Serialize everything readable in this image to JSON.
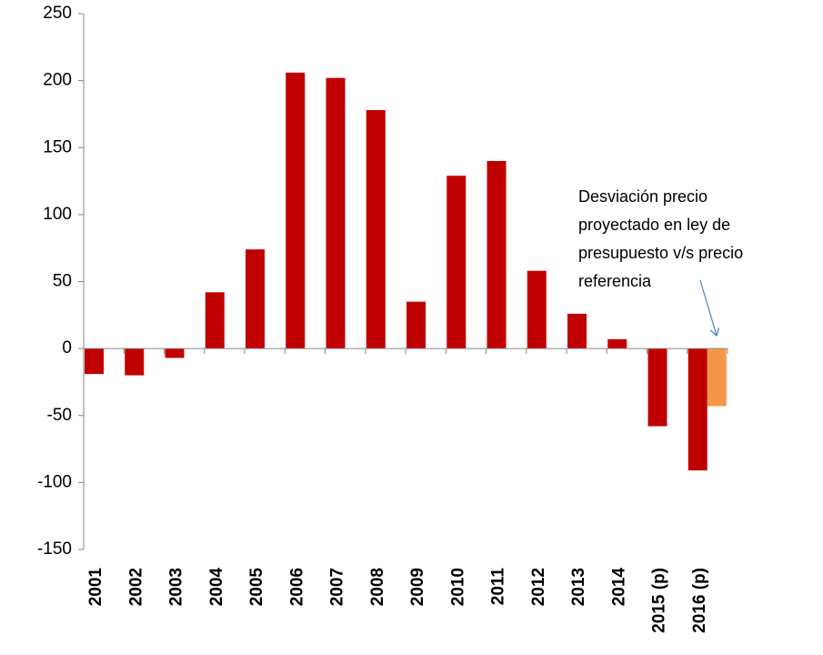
{
  "chart_data": {
    "type": "bar",
    "categories": [
      "2001",
      "2002",
      "2003",
      "2004",
      "2005",
      "2006",
      "2007",
      "2008",
      "2009",
      "2010",
      "2011",
      "2012",
      "2013",
      "2014",
      "2015 (p)",
      "2016 (p)"
    ],
    "series": [
      {
        "color": "#c00000",
        "values": [
          -19,
          -20,
          -7,
          42,
          74,
          206,
          202,
          178,
          35,
          129,
          140,
          58,
          26,
          7,
          -58,
          -91
        ]
      },
      {
        "color": "#f79646",
        "values": [
          null,
          null,
          null,
          null,
          null,
          null,
          null,
          null,
          null,
          null,
          null,
          null,
          null,
          null,
          null,
          -43
        ]
      }
    ],
    "ylim": [
      -150,
      250
    ],
    "yticks": [
      -150,
      -100,
      -50,
      0,
      50,
      100,
      150,
      200,
      250
    ],
    "annotation": [
      "Desviación precio",
      "proyectado en ley de",
      "presupuesto v/s precio",
      "referencia"
    ]
  }
}
